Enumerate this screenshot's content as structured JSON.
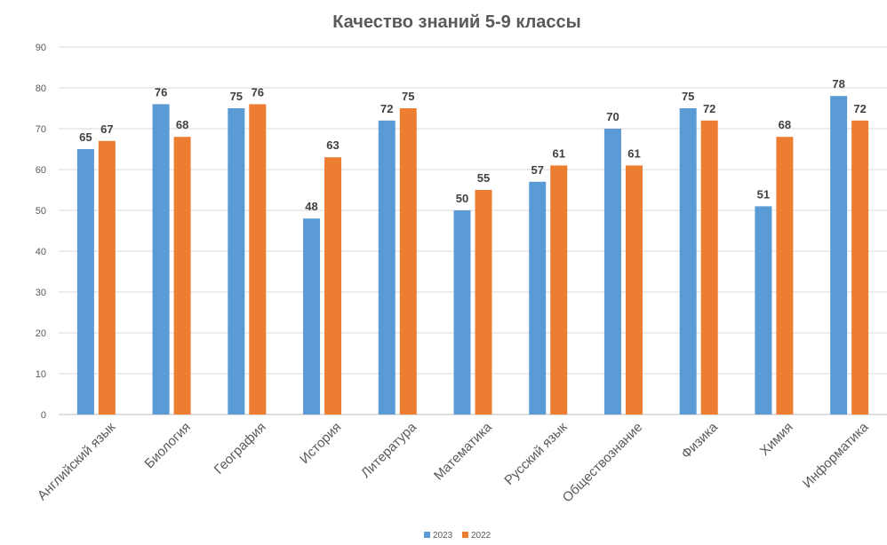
{
  "chart_data": {
    "type": "bar",
    "title": "Качество знаний 5-9 классы",
    "categories": [
      "Английский язык",
      "Биология",
      "География",
      "История",
      "Литература",
      "Математика",
      "Русский язык",
      "Обществознание",
      "Физика",
      "Химия",
      "Информатика"
    ],
    "series": [
      {
        "name": "2023",
        "color": "#5B9BD5",
        "values": [
          65,
          76,
          75,
          48,
          72,
          50,
          57,
          70,
          75,
          51,
          78
        ]
      },
      {
        "name": "2022",
        "color": "#ED7D31",
        "values": [
          67,
          68,
          76,
          63,
          75,
          55,
          61,
          61,
          72,
          68,
          72
        ]
      }
    ],
    "ylim": [
      0,
      90
    ],
    "yticks": [
      0,
      10,
      20,
      30,
      40,
      50,
      60,
      70,
      80,
      90
    ],
    "grid": true,
    "legend_position": "bottom"
  }
}
